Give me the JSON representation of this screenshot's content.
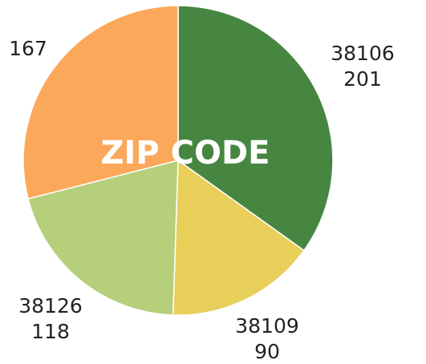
{
  "chart_data": {
    "type": "pie",
    "title": "ZIP CODE",
    "categories": [
      "38106",
      "38109",
      "38126",
      null
    ],
    "values": [
      201,
      90,
      118,
      167
    ],
    "colors": [
      "#468641",
      "#e8cf5a",
      "#b5cf7a",
      "#fca85a"
    ]
  }
}
